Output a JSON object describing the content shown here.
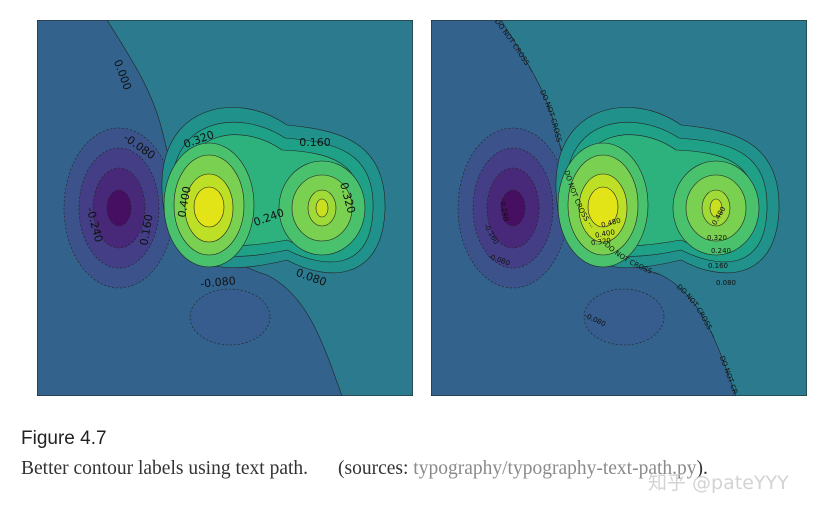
{
  "figure": {
    "left_panel": {
      "labels": [
        "0.000",
        "-0.080",
        "-0.240",
        "0.160",
        "0.320",
        "0.400",
        "0.240",
        "0.160",
        "0.320",
        "-0.080",
        "0.080"
      ]
    },
    "right_panel": {
      "path_text": "DO NOT CROSS ···",
      "labels": [
        "-0.240",
        "-0.160",
        "-0.080",
        "-0.080",
        "0.480",
        "0.400",
        "0.320",
        "0.480",
        "0.320",
        "0.240",
        "0.160",
        "0.080"
      ]
    },
    "caption": {
      "number": "Figure 4.7",
      "text": "Better contour labels using text path.",
      "source_prefix": "(sources:",
      "link": "typography/typography-text-path.py",
      "suffix": ")."
    },
    "watermark": "知乎 @pateYYY"
  }
}
